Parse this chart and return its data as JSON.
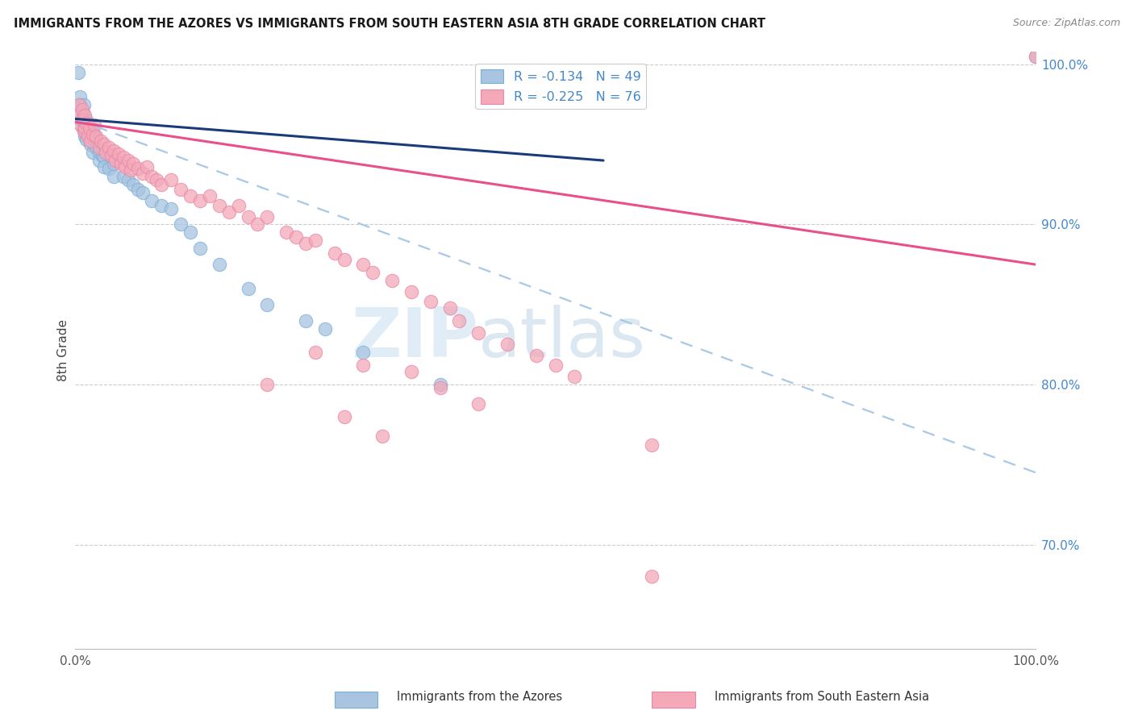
{
  "title": "IMMIGRANTS FROM THE AZORES VS IMMIGRANTS FROM SOUTH EASTERN ASIA 8TH GRADE CORRELATION CHART",
  "source": "Source: ZipAtlas.com",
  "ylabel": "8th Grade",
  "xmin": 0.0,
  "xmax": 1.0,
  "ymin": 0.635,
  "ymax": 1.008,
  "blue_color": "#a8c4e0",
  "blue_edge": "#7ab0d8",
  "pink_color": "#f4a8b8",
  "pink_edge": "#e888a8",
  "blue_line_color": "#1a3a7a",
  "pink_line_color": "#e8508a",
  "dashed_line_color": "#a8c8e8",
  "grid_color": "#cccccc",
  "background_color": "#ffffff",
  "right_axis_color": "#4488cc",
  "title_color": "#1a1a1a",
  "source_color": "#888888",
  "watermark_color": "#d0e8f8",
  "blue_line_x0": 0.0,
  "blue_line_x1": 0.55,
  "blue_line_y0": 0.966,
  "blue_line_y1": 0.94,
  "pink_line_x0": 0.0,
  "pink_line_x1": 1.0,
  "pink_line_y0": 0.964,
  "pink_line_y1": 0.875,
  "dash_line_x0": 0.0,
  "dash_line_x1": 1.0,
  "dash_line_y0": 0.966,
  "dash_line_y1": 0.745,
  "blue_scatter_x": [
    0.003,
    0.005,
    0.005,
    0.006,
    0.008,
    0.008,
    0.009,
    0.01,
    0.01,
    0.01,
    0.012,
    0.012,
    0.013,
    0.014,
    0.015,
    0.015,
    0.016,
    0.018,
    0.018,
    0.02,
    0.021,
    0.022,
    0.025,
    0.025,
    0.028,
    0.03,
    0.03,
    0.035,
    0.04,
    0.04,
    0.05,
    0.055,
    0.06,
    0.065,
    0.07,
    0.08,
    0.09,
    0.1,
    0.11,
    0.12,
    0.13,
    0.15,
    0.18,
    0.2,
    0.24,
    0.26,
    0.3,
    0.38,
    1.0
  ],
  "blue_scatter_y": [
    0.995,
    0.98,
    0.975,
    0.965,
    0.97,
    0.96,
    0.975,
    0.96,
    0.958,
    0.955,
    0.965,
    0.953,
    0.958,
    0.96,
    0.962,
    0.955,
    0.95,
    0.958,
    0.945,
    0.95,
    0.955,
    0.948,
    0.945,
    0.94,
    0.943,
    0.942,
    0.936,
    0.935,
    0.938,
    0.93,
    0.93,
    0.928,
    0.925,
    0.922,
    0.92,
    0.915,
    0.912,
    0.91,
    0.9,
    0.895,
    0.885,
    0.875,
    0.86,
    0.85,
    0.84,
    0.835,
    0.82,
    0.8,
    1.005
  ],
  "pink_scatter_x": [
    0.002,
    0.004,
    0.006,
    0.007,
    0.008,
    0.009,
    0.01,
    0.01,
    0.012,
    0.013,
    0.015,
    0.016,
    0.018,
    0.02,
    0.022,
    0.025,
    0.027,
    0.03,
    0.032,
    0.035,
    0.038,
    0.04,
    0.042,
    0.045,
    0.048,
    0.05,
    0.052,
    0.055,
    0.058,
    0.06,
    0.065,
    0.07,
    0.075,
    0.08,
    0.085,
    0.09,
    0.1,
    0.11,
    0.12,
    0.13,
    0.14,
    0.15,
    0.16,
    0.17,
    0.18,
    0.19,
    0.2,
    0.22,
    0.23,
    0.24,
    0.25,
    0.27,
    0.28,
    0.3,
    0.31,
    0.33,
    0.35,
    0.37,
    0.39,
    0.4,
    0.42,
    0.45,
    0.48,
    0.5,
    0.52,
    0.25,
    0.3,
    0.35,
    0.38,
    0.42,
    0.2,
    0.28,
    0.32,
    0.6,
    0.6,
    1.0
  ],
  "pink_scatter_y": [
    0.968,
    0.975,
    0.962,
    0.972,
    0.965,
    0.958,
    0.968,
    0.96,
    0.963,
    0.955,
    0.96,
    0.952,
    0.956,
    0.962,
    0.955,
    0.948,
    0.952,
    0.95,
    0.945,
    0.948,
    0.943,
    0.946,
    0.94,
    0.944,
    0.938,
    0.942,
    0.936,
    0.94,
    0.934,
    0.938,
    0.935,
    0.932,
    0.936,
    0.93,
    0.928,
    0.925,
    0.928,
    0.922,
    0.918,
    0.915,
    0.918,
    0.912,
    0.908,
    0.912,
    0.905,
    0.9,
    0.905,
    0.895,
    0.892,
    0.888,
    0.89,
    0.882,
    0.878,
    0.875,
    0.87,
    0.865,
    0.858,
    0.852,
    0.848,
    0.84,
    0.832,
    0.825,
    0.818,
    0.812,
    0.805,
    0.82,
    0.812,
    0.808,
    0.798,
    0.788,
    0.8,
    0.78,
    0.768,
    0.68,
    0.762,
    1.005
  ]
}
